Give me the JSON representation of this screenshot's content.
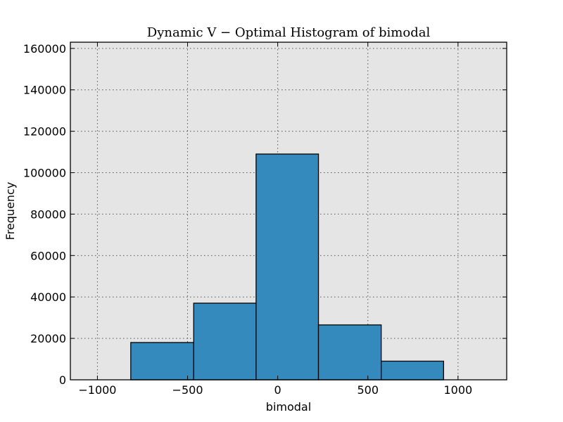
{
  "chart_data": {
    "type": "bar",
    "title": "Dynamic V − Optimal Histogram of bimodal",
    "xlabel": "bimodal",
    "ylabel": "Frequency",
    "xlim": [
      -1150,
      1270
    ],
    "ylim": [
      0,
      163000
    ],
    "grid": true,
    "bar_color": "#348abd",
    "background_color": "#e5e5e5",
    "x_ticks": [
      {
        "value": -1000,
        "label": "−1000"
      },
      {
        "value": -500,
        "label": "−500"
      },
      {
        "value": 0,
        "label": "0"
      },
      {
        "value": 500,
        "label": "500"
      },
      {
        "value": 1000,
        "label": "1000"
      }
    ],
    "y_ticks": [
      {
        "value": 0,
        "label": "0"
      },
      {
        "value": 20000,
        "label": "20000"
      },
      {
        "value": 40000,
        "label": "40000"
      },
      {
        "value": 60000,
        "label": "60000"
      },
      {
        "value": 80000,
        "label": "80000"
      },
      {
        "value": 100000,
        "label": "100000"
      },
      {
        "value": 120000,
        "label": "120000"
      },
      {
        "value": 140000,
        "label": "140000"
      },
      {
        "value": 160000,
        "label": "160000"
      }
    ],
    "bins": [
      {
        "start": -815,
        "end": -466,
        "value": 18000
      },
      {
        "start": -466,
        "end": -120,
        "value": 37000
      },
      {
        "start": -120,
        "end": 226,
        "value": 109000
      },
      {
        "start": 226,
        "end": 574,
        "value": 26500
      },
      {
        "start": 574,
        "end": 920,
        "value": 9000
      }
    ]
  }
}
